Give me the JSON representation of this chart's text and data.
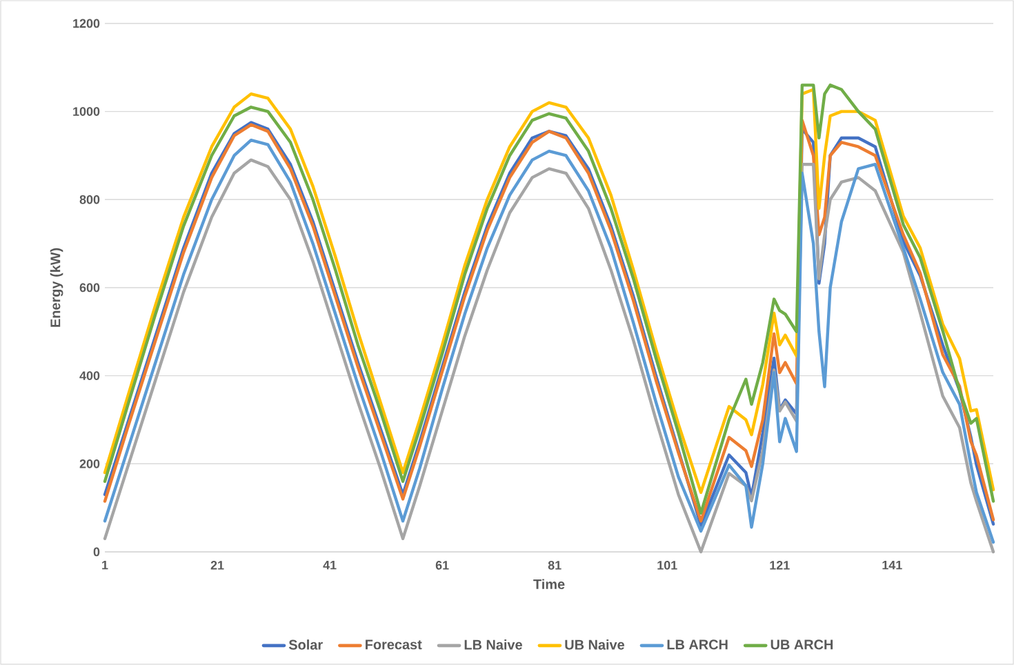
{
  "chart_data": {
    "type": "line",
    "xlabel": "Time",
    "ylabel": "Energy (kW)",
    "x": [
      1,
      5,
      10,
      15,
      20,
      24,
      27,
      30,
      34,
      38,
      42,
      46,
      50,
      54,
      57,
      61,
      65,
      69,
      73,
      77,
      80,
      83,
      87,
      91,
      95,
      99,
      103,
      107,
      112,
      115,
      116,
      118,
      120,
      121,
      122,
      124,
      125,
      127,
      128,
      129,
      130,
      132,
      135,
      138,
      143,
      146,
      150,
      153,
      155,
      156,
      159
    ],
    "xlim": [
      1,
      159
    ],
    "xticks": [
      1,
      21,
      41,
      61,
      81,
      101,
      121,
      141
    ],
    "ylim": [
      0,
      1200
    ],
    "yticks": [
      0,
      200,
      400,
      600,
      800,
      1000,
      1200
    ],
    "grid": "y",
    "legend": "bottom",
    "line_style": "solid",
    "marker": "none",
    "series": [
      {
        "name": "Solar",
        "color": "#4472c4",
        "values": [
          130,
          290,
          490,
          690,
          860,
          950,
          975,
          960,
          880,
          750,
          590,
          430,
          280,
          130,
          250,
          420,
          590,
          740,
          860,
          940,
          955,
          945,
          870,
          740,
          580,
          400,
          230,
          60,
          220,
          180,
          125,
          270,
          440,
          323,
          345,
          313,
          960,
          930,
          610,
          700,
          900,
          940,
          940,
          920,
          705,
          627,
          470,
          366,
          261,
          198,
          63
        ]
      },
      {
        "name": "Forecast",
        "color": "#ed7d31",
        "values": [
          115,
          280,
          480,
          680,
          850,
          945,
          970,
          955,
          870,
          740,
          580,
          420,
          270,
          120,
          240,
          410,
          580,
          730,
          850,
          930,
          955,
          940,
          860,
          730,
          570,
          390,
          225,
          70,
          260,
          230,
          194,
          300,
          495,
          407,
          430,
          382,
          980,
          900,
          720,
          760,
          900,
          930,
          920,
          900,
          720,
          633,
          448,
          376,
          251,
          219,
          73
        ]
      },
      {
        "name": "LB Naive",
        "color": "#a5a5a5",
        "values": [
          30,
          190,
          390,
          590,
          760,
          860,
          890,
          875,
          800,
          660,
          500,
          340,
          190,
          30,
          150,
          320,
          490,
          640,
          770,
          850,
          870,
          860,
          780,
          640,
          480,
          300,
          130,
          0,
          178,
          150,
          116,
          230,
          413,
          320,
          340,
          297,
          880,
          880,
          620,
          720,
          800,
          840,
          850,
          820,
          680,
          543,
          354,
          282,
          157,
          115,
          0
        ]
      },
      {
        "name": "UB Naive",
        "color": "#ffc000",
        "values": [
          180,
          350,
          560,
          760,
          920,
          1010,
          1040,
          1030,
          960,
          830,
          670,
          500,
          340,
          180,
          300,
          470,
          650,
          800,
          920,
          1000,
          1020,
          1010,
          940,
          810,
          640,
          460,
          290,
          135,
          330,
          300,
          266,
          380,
          542,
          470,
          492,
          445,
          1040,
          1050,
          780,
          900,
          990,
          1000,
          1000,
          980,
          762,
          690,
          517,
          439,
          320,
          323,
          141
        ]
      },
      {
        "name": "LB ARCH",
        "color": "#5b9bd5",
        "values": [
          70,
          230,
          430,
          630,
          800,
          900,
          935,
          925,
          840,
          700,
          540,
          380,
          230,
          70,
          190,
          370,
          540,
          690,
          810,
          890,
          910,
          900,
          820,
          690,
          520,
          340,
          170,
          47,
          197,
          150,
          56,
          200,
          407,
          250,
          303,
          228,
          860,
          700,
          500,
          375,
          600,
          750,
          870,
          880,
          690,
          574,
          408,
          335,
          198,
          135,
          22
        ]
      },
      {
        "name": "UB ARCH",
        "color": "#70ad47",
        "values": [
          160,
          330,
          540,
          740,
          900,
          990,
          1010,
          1000,
          930,
          800,
          640,
          470,
          320,
          160,
          280,
          450,
          630,
          780,
          900,
          980,
          995,
          985,
          910,
          780,
          620,
          440,
          270,
          88,
          300,
          392,
          335,
          430,
          574,
          548,
          540,
          500,
          1060,
          1060,
          940,
          1040,
          1060,
          1050,
          1000,
          960,
          743,
          668,
          502,
          366,
          292,
          303,
          115
        ]
      }
    ]
  }
}
